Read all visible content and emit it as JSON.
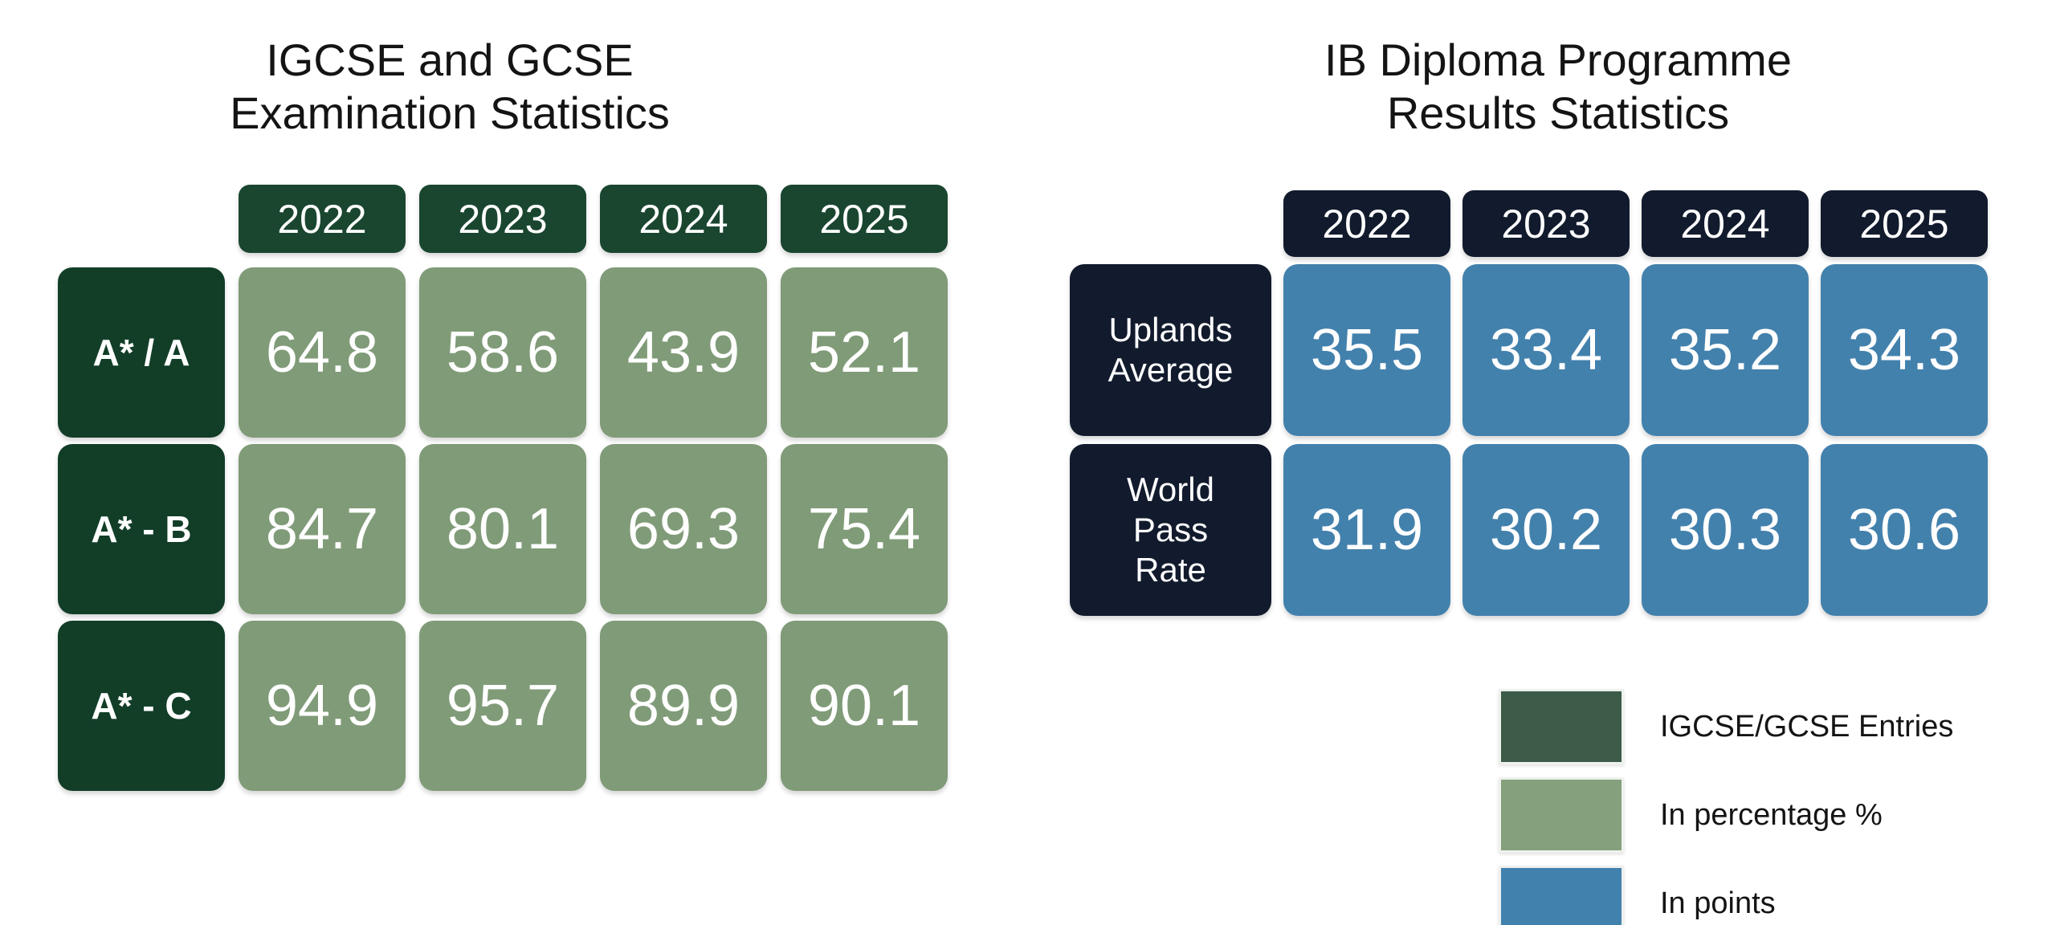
{
  "display": {
    "left_title_lines": [
      "IGCSE and GCSE",
      "Examination Statistics"
    ],
    "right_title_lines": [
      "IB Diploma Programme",
      "Results Statistics"
    ],
    "right_row_label_lines": [
      [
        "Uplands",
        "Average"
      ],
      [
        "World",
        "Pass",
        "Rate"
      ]
    ]
  },
  "chart_data": [
    {
      "type": "table",
      "title": "IGCSE and GCSE Examination Statistics",
      "columns": [
        "2022",
        "2023",
        "2024",
        "2025"
      ],
      "rows": [
        {
          "label": "A* / A",
          "values": [
            64.8,
            58.6,
            43.9,
            52.1
          ]
        },
        {
          "label": "A* - B",
          "values": [
            84.7,
            80.1,
            69.3,
            75.4
          ]
        },
        {
          "label": "A* - C",
          "values": [
            94.9,
            95.7,
            89.9,
            90.1
          ]
        }
      ],
      "unit": "percentage %"
    },
    {
      "type": "table",
      "title": "IB Diploma Programme Results Statistics",
      "columns": [
        "2022",
        "2023",
        "2024",
        "2025"
      ],
      "rows": [
        {
          "label": "Uplands Average",
          "values": [
            35.5,
            33.4,
            35.2,
            34.3
          ]
        },
        {
          "label": "World Pass Rate",
          "values": [
            31.9,
            30.2,
            30.3,
            30.6
          ]
        }
      ],
      "unit": "points"
    }
  ],
  "legend": {
    "items": [
      {
        "label": "IGCSE/GCSE Entries",
        "color": "#3c5c49"
      },
      {
        "label": "In percentage %",
        "color": "#84a07c"
      },
      {
        "label": "In points",
        "color": "#4181ae"
      }
    ]
  },
  "colors": {
    "left_header_green": "#1a4630",
    "left_rowhead_green": "#123e28",
    "left_cell_sage": "#809b78",
    "right_header_navy": "#121b2d",
    "right_cell_blue": "#4381ad",
    "background": "#ffffff",
    "cell_text": "#ffffff",
    "title_text": "#141414"
  }
}
